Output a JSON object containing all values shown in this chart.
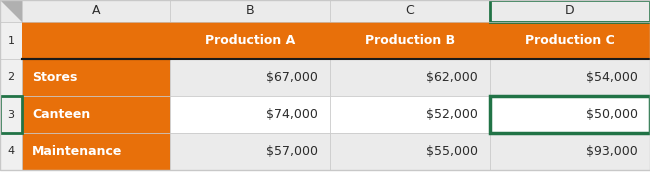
{
  "header_labels": [
    "Production A",
    "Production B",
    "Production C"
  ],
  "row_labels": [
    "Stores",
    "Canteen",
    "Maintenance"
  ],
  "col_letters": [
    "A",
    "B",
    "C",
    "D"
  ],
  "row_numbers": [
    "1",
    "2",
    "3",
    "4"
  ],
  "values": [
    [
      "$67,000",
      "$62,000",
      "$54,000"
    ],
    [
      "$74,000",
      "$52,000",
      "$50,000"
    ],
    [
      "$57,000",
      "$55,000",
      "$93,000"
    ]
  ],
  "orange_color": "#E8700A",
  "white_text": "#FFFFFF",
  "dark_text": "#2B2B2B",
  "grey_header_bg": "#EBEBEB",
  "white_bg": "#FFFFFF",
  "light_grey_bg": "#E8E8E8",
  "row_num_bg": "#F0F0F0",
  "grid_line_color": "#C8C8C8",
  "green_border_color": "#217346",
  "corner_tri_color": "#B0B0B0",
  "orange_bottom_line": "#1A1A1A",
  "data_row_bgs": [
    "#EBEBEB",
    "#FFFFFF",
    "#EBEBEB"
  ]
}
